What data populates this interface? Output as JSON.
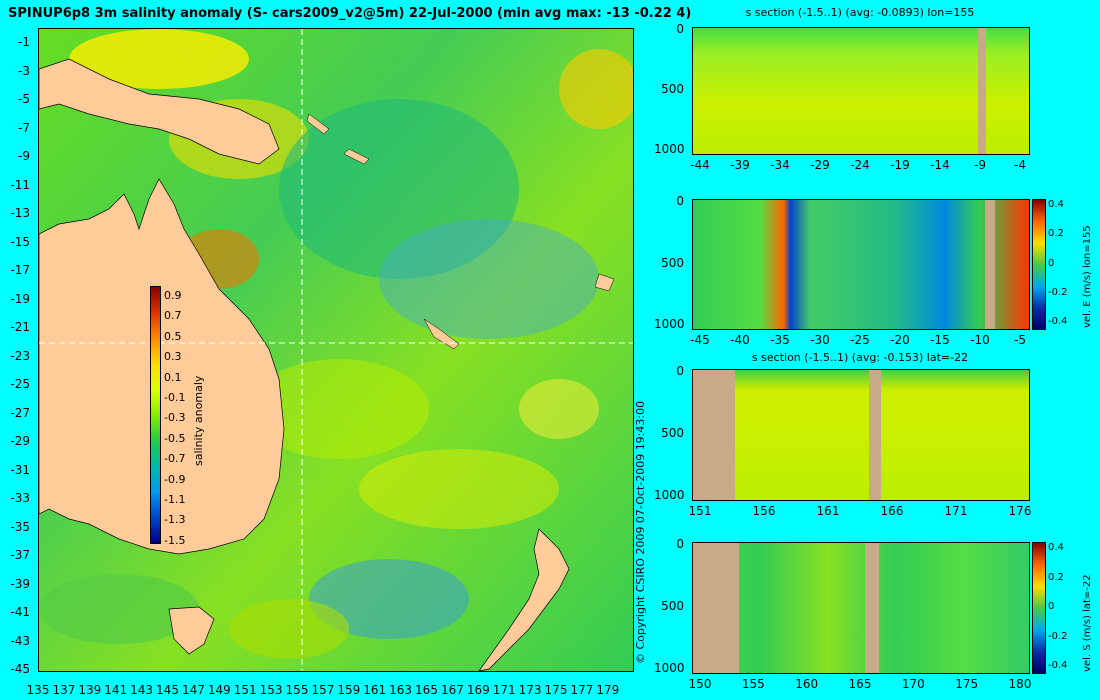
{
  "map": {
    "title": "SPINUP6p8 3m salinity anomaly (S- cars2009_v2@5m) 22-Jul-2000 (min avg max: -13 -0.22 4)",
    "lat_ticks": [
      "-1",
      "-3",
      "-5",
      "-7",
      "-9",
      "-11",
      "-13",
      "-15",
      "-17",
      "-19",
      "-21",
      "-23",
      "-25",
      "-27",
      "-29",
      "-31",
      "-33",
      "-35",
      "-37",
      "-39",
      "-41",
      "-43",
      "-45"
    ],
    "lon_ticks": [
      "135",
      "137",
      "139",
      "141",
      "143",
      "145",
      "147",
      "149",
      "151",
      "153",
      "155",
      "157",
      "159",
      "161",
      "163",
      "165",
      "167",
      "169",
      "171",
      "173",
      "175",
      "177",
      "179"
    ],
    "colorbar": {
      "label": "salinity anomaly",
      "ticks": [
        "0.9",
        "0.7",
        "0.5",
        "0.3",
        "0.1",
        "-0.1",
        "-0.3",
        "-0.5",
        "-0.7",
        "-0.9",
        "-1.1",
        "-1.3",
        "-1.5"
      ]
    },
    "copyright": "© Copyright CSIRO 2009    07-Oct-2009 19:43:00"
  },
  "panels": [
    {
      "title": "s section (-1.5..1) (avg: -0.0893) lon=155",
      "yticks": [
        "0",
        "500",
        "1000"
      ],
      "xticks": [
        "-44",
        "-39",
        "-34",
        "-29",
        "-24",
        "-19",
        "-14",
        "-9",
        "-4"
      ],
      "cbar": null
    },
    {
      "title": "",
      "yticks": [
        "0",
        "500",
        "1000"
      ],
      "xticks": [
        "-45",
        "-40",
        "-35",
        "-30",
        "-25",
        "-20",
        "-15",
        "-10",
        "-5"
      ],
      "cbar": {
        "ticks": [
          "0.4",
          "0.2",
          "0",
          "-0.2",
          "-0.4"
        ],
        "label": "vel. E (m/s) lon=155"
      }
    },
    {
      "title": "s section (-1.5..1) (avg: -0.153) lat=-22",
      "yticks": [
        "0",
        "500",
        "1000"
      ],
      "xticks": [
        "151",
        "156",
        "161",
        "166",
        "171",
        "176"
      ],
      "cbar": null
    },
    {
      "title": "",
      "yticks": [
        "0",
        "500",
        "1000"
      ],
      "xticks": [
        "150",
        "155",
        "160",
        "165",
        "170",
        "175",
        "180"
      ],
      "cbar": {
        "ticks": [
          "0.4",
          "0.2",
          "0",
          "-0.2",
          "-0.4"
        ],
        "label": "vel. S (m/s) lat=-22"
      }
    }
  ]
}
